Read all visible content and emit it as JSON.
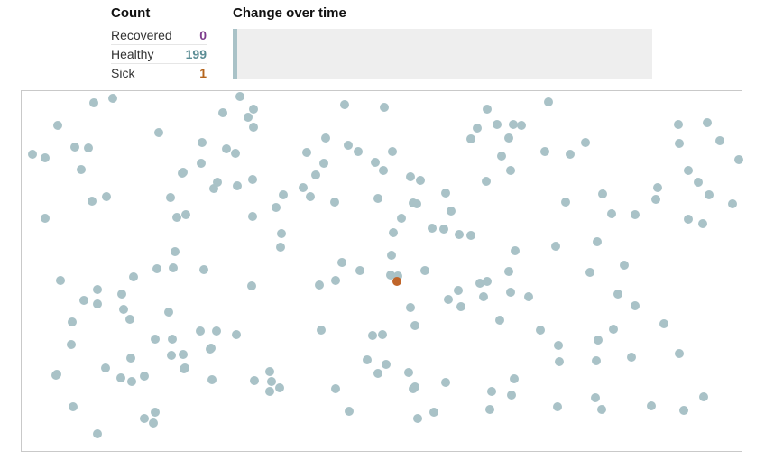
{
  "count": {
    "title": "Count",
    "rows": [
      {
        "label": "Recovered",
        "value": "0",
        "color": "#7d3b8c"
      },
      {
        "label": "Healthy",
        "value": "199",
        "color": "#5a8c94"
      },
      {
        "label": "Sick",
        "value": "1",
        "color": "#b5651d"
      }
    ]
  },
  "change": {
    "title": "Change over time",
    "healthy_color": "#a9c2c7",
    "chart_bg": "#eeeeee"
  },
  "simulation": {
    "healthy_color": "#a9c2c7",
    "sick_color": "#c0652a",
    "border_color": "#c9c9c9"
  }
}
